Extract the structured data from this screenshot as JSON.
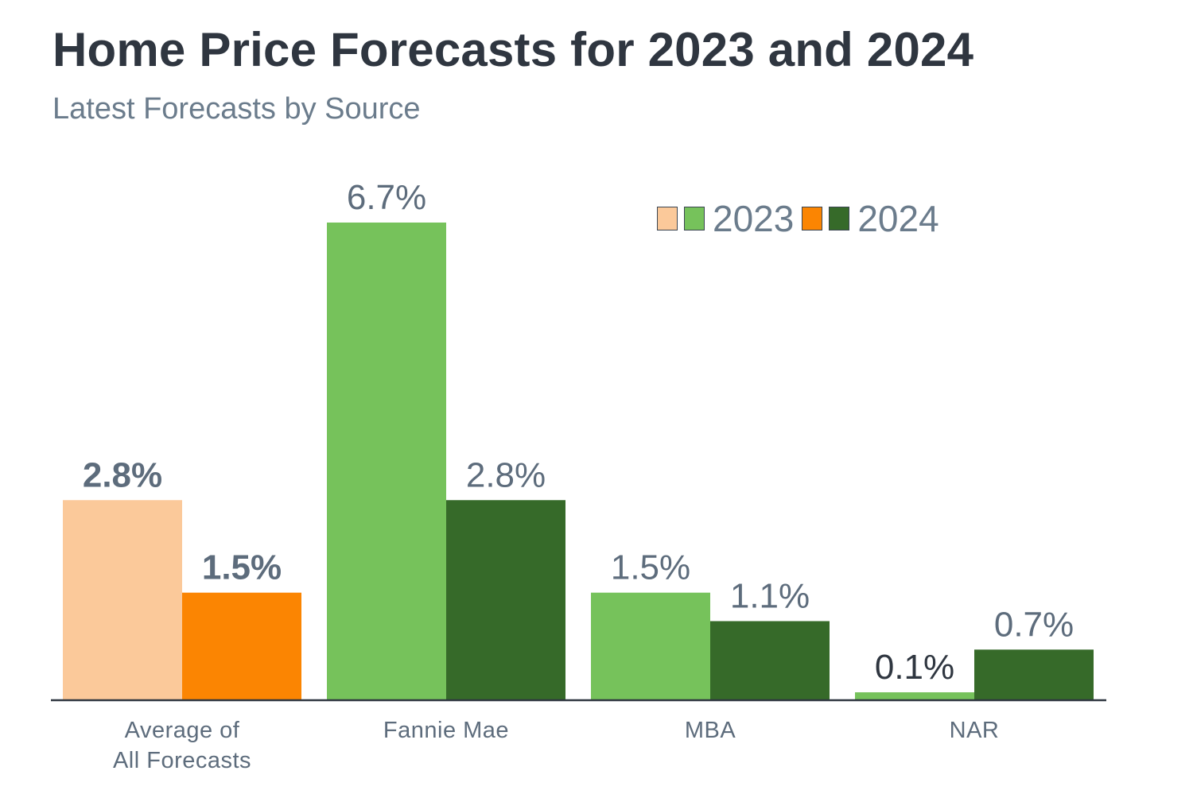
{
  "chart_data": {
    "type": "bar",
    "title": "Home Price Forecasts for 2023 and 2024",
    "subtitle": "Latest Forecasts by Source",
    "categories": [
      [
        "Average of",
        "All Forecasts"
      ],
      [
        "Fannie Mae"
      ],
      [
        "MBA"
      ],
      [
        "NAR"
      ]
    ],
    "series": [
      {
        "name": "2023",
        "values": [
          2.8,
          6.7,
          1.5,
          0.1
        ],
        "labels": [
          "2.8%",
          "6.7%",
          "1.5%",
          "0.1%"
        ],
        "colors": [
          "#fbc99a",
          "#76c25b",
          "#76c25b",
          "#76c25b"
        ],
        "legend_colors": [
          "#fbc99a",
          "#76c25b"
        ]
      },
      {
        "name": "2024",
        "values": [
          1.5,
          2.8,
          1.1,
          0.7
        ],
        "labels": [
          "1.5%",
          "2.8%",
          "1.1%",
          "0.7%"
        ],
        "colors": [
          "#fb8502",
          "#366a29",
          "#366a29",
          "#366a29"
        ],
        "legend_colors": [
          "#fb8502",
          "#366a29"
        ]
      }
    ],
    "highlight_category": 0,
    "ylim": [
      0,
      6.7
    ],
    "grid": false,
    "legend_position": "top-right",
    "colors": {
      "text": "#2f3640",
      "label": "#5d6c7c",
      "axis": "#2f3640"
    }
  }
}
